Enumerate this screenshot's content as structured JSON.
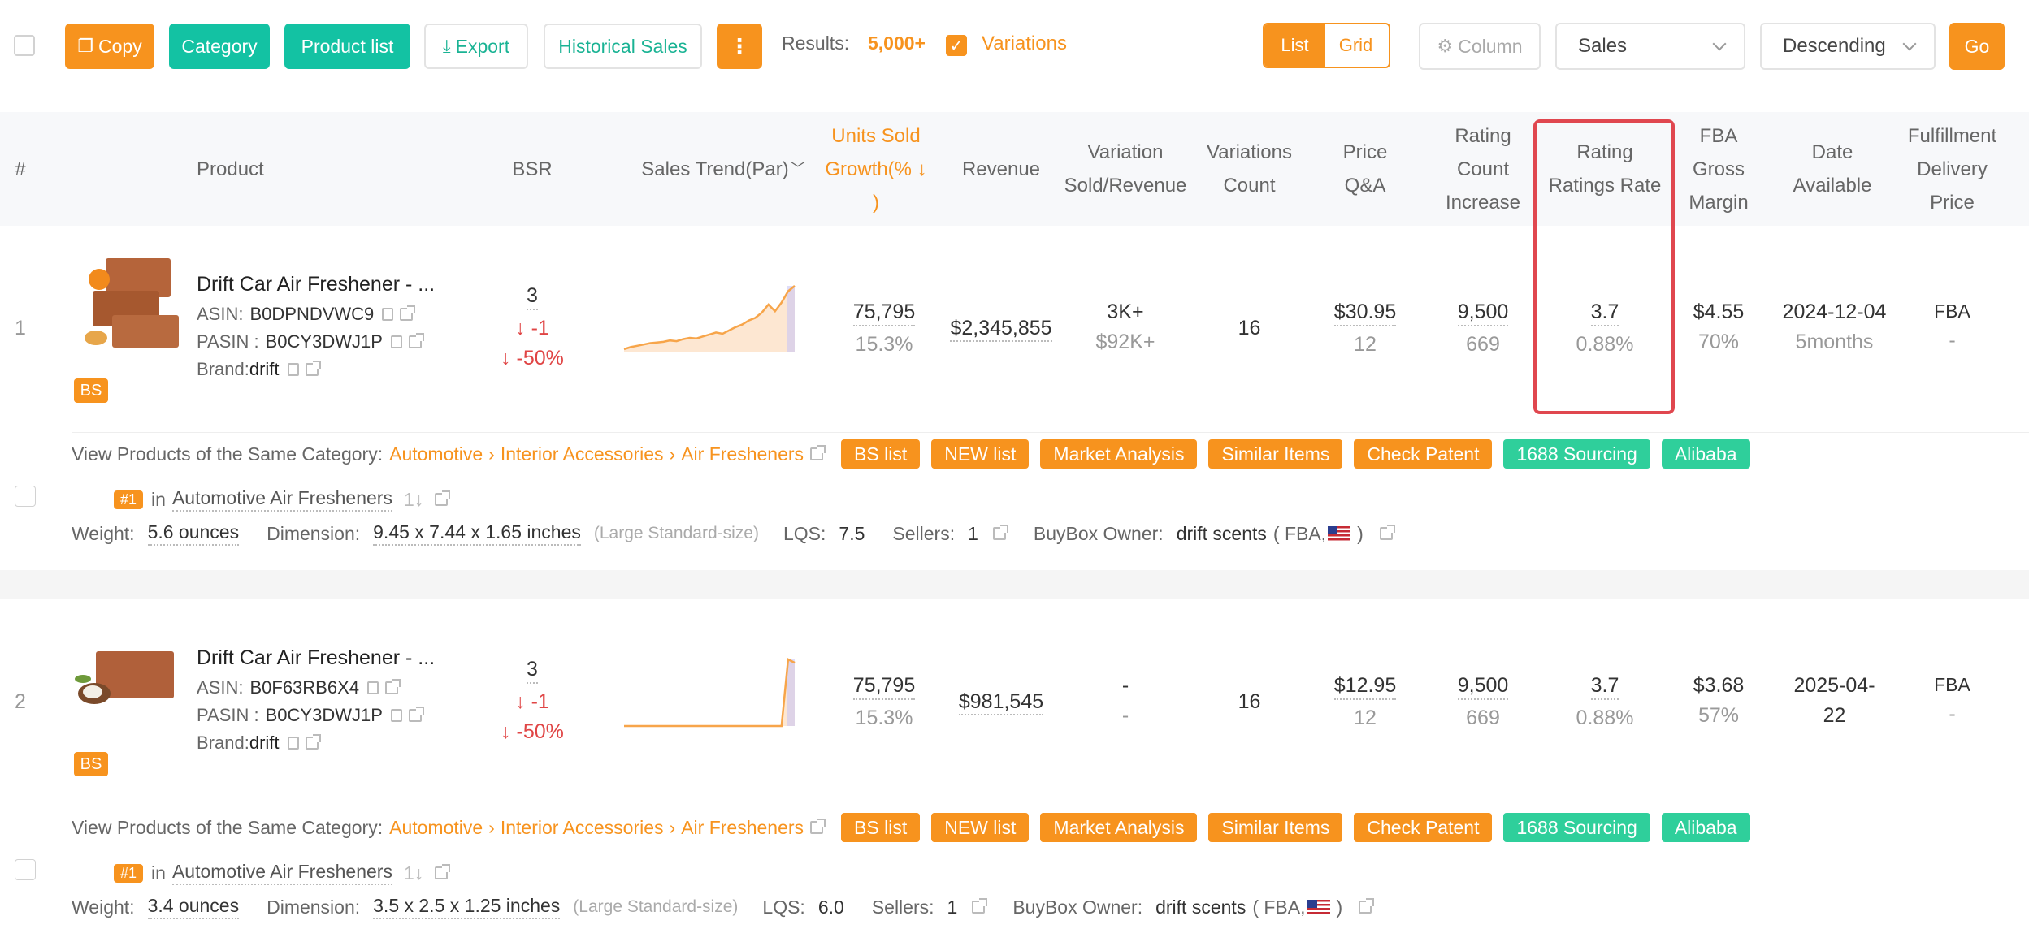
{
  "toolbar": {
    "copy": "Copy",
    "category": "Category",
    "product_list": "Product list",
    "export": "Export",
    "historical_sales": "Historical Sales",
    "more": "⋮",
    "results_label": "Results:",
    "results_value": "5,000+",
    "variations_label": "Variations",
    "view_list": "List",
    "view_grid": "Grid",
    "column": "Column",
    "sort_field": "Sales",
    "sort_order": "Descending",
    "go": "Go",
    "accent_color": "#f7931e",
    "teal_color": "#13c2a3"
  },
  "headers": {
    "index": "#",
    "product": "Product",
    "bsr": "BSR",
    "sales_trend": "Sales Trend(Par)",
    "units_sold": [
      "Units Sold",
      "Growth(% ↓",
      ")"
    ],
    "revenue": "Revenue",
    "variation": [
      "Variation",
      "Sold/Revenue"
    ],
    "variations_count": [
      "Variations",
      "Count"
    ],
    "price": [
      "Price",
      "Q&A"
    ],
    "rating_count": [
      "Rating",
      "Count",
      "Increase"
    ],
    "rating": [
      "Rating",
      "Ratings Rate"
    ],
    "fba": [
      "FBA",
      "Gross",
      "Margin"
    ],
    "date": [
      "Date",
      "Available"
    ],
    "fulfillment": [
      "Fulfillment",
      "Delivery",
      "Price"
    ]
  },
  "products": [
    {
      "index": "1",
      "name": "Drift Car Air Freshener - ...",
      "asin_label": "ASIN:",
      "asin": "B0DPNDVWC9",
      "pasin_label": "PASIN :",
      "pasin": "B0CY3DWJ1P",
      "brand_label": "Brand:",
      "brand": "drift",
      "badge": "BS",
      "bsr": "3",
      "bsr_change": "↓ -1",
      "bsr_pct": "↓ -50%",
      "units": "75,795",
      "units_growth": "15.3%",
      "revenue": "$2,345,855",
      "variation_sold": "3K+",
      "variation_revenue": "$92K+",
      "variations_count": "16",
      "price": "$30.95",
      "qa": "12",
      "rating_count": "9,500",
      "rating_increase": "669",
      "rating": "3.7",
      "ratings_rate": "0.88%",
      "fba_fee": "$4.55",
      "gross_margin": "70%",
      "date": "2024-12-04",
      "age": "5months",
      "fulfillment": "FBA",
      "delivery_price": "-",
      "category_label": "View Products of the Same Category:",
      "crumbs": [
        "Automotive",
        "Interior Accessories",
        "Air Fresheners"
      ],
      "tags": [
        "BS list",
        "NEW list",
        "Market Analysis",
        "Similar Items",
        "Check Patent",
        "1688 Sourcing",
        "Alibaba"
      ],
      "rank": "#1",
      "rank_in": "in",
      "rank_category": "Automotive Air Fresheners",
      "weight_label": "Weight:",
      "weight": "5.6 ounces",
      "dimension_label": "Dimension:",
      "dimension": "9.45 x 7.44 x 1.65 inches",
      "size_tier": "(Large Standard-size)",
      "lqs_label": "LQS:",
      "lqs": "7.5",
      "sellers_label": "Sellers:",
      "sellers": "1",
      "buybox_label": "BuyBox Owner:",
      "buybox": "drift scents",
      "buybox_fba": "( FBA,",
      "buybox_close": ")",
      "trend": [
        0.05,
        0.08,
        0.1,
        0.12,
        0.14,
        0.15,
        0.16,
        0.18,
        0.17,
        0.2,
        0.22,
        0.21,
        0.24,
        0.27,
        0.3,
        0.28,
        0.33,
        0.38,
        0.42,
        0.48,
        0.52,
        0.6,
        0.72,
        0.62,
        0.75,
        0.92,
        1.0
      ]
    },
    {
      "index": "2",
      "name": "Drift Car Air Freshener - ...",
      "asin_label": "ASIN:",
      "asin": "B0F63RB6X4",
      "pasin_label": "PASIN :",
      "pasin": "B0CY3DWJ1P",
      "brand_label": "Brand:",
      "brand": "drift",
      "badge": "BS",
      "bsr": "3",
      "bsr_change": "↓ -1",
      "bsr_pct": "↓ -50%",
      "units": "75,795",
      "units_growth": "15.3%",
      "revenue": "$981,545",
      "variation_sold": "-",
      "variation_revenue": "-",
      "variations_count": "16",
      "price": "$12.95",
      "qa": "12",
      "rating_count": "9,500",
      "rating_increase": "669",
      "rating": "3.7",
      "ratings_rate": "0.88%",
      "fba_fee": "$3.68",
      "gross_margin": "57%",
      "date": "2025-04-",
      "age": "22",
      "fulfillment": "FBA",
      "delivery_price": "-",
      "category_label": "View Products of the Same Category:",
      "crumbs": [
        "Automotive",
        "Interior Accessories",
        "Air Fresheners"
      ],
      "tags": [
        "BS list",
        "NEW list",
        "Market Analysis",
        "Similar Items",
        "Check Patent",
        "1688 Sourcing",
        "Alibaba"
      ],
      "rank": "#1",
      "rank_in": "in",
      "rank_category": "Automotive Air Fresheners",
      "weight_label": "Weight:",
      "weight": "3.4 ounces",
      "dimension_label": "Dimension:",
      "dimension": "3.5 x 2.5 x 1.25 inches",
      "size_tier": "(Large Standard-size)",
      "lqs_label": "LQS:",
      "lqs": "6.0",
      "sellers_label": "Sellers:",
      "sellers": "1",
      "buybox_label": "BuyBox Owner:",
      "buybox": "drift scents",
      "buybox_fba": "( FBA,",
      "buybox_close": ")",
      "trend": [
        0,
        0,
        0,
        0,
        0,
        0,
        0,
        0,
        0,
        0,
        0,
        0,
        0,
        0,
        0,
        0,
        0,
        0,
        0,
        0,
        0,
        0,
        0,
        0,
        0,
        1.0,
        0.95
      ]
    }
  ]
}
